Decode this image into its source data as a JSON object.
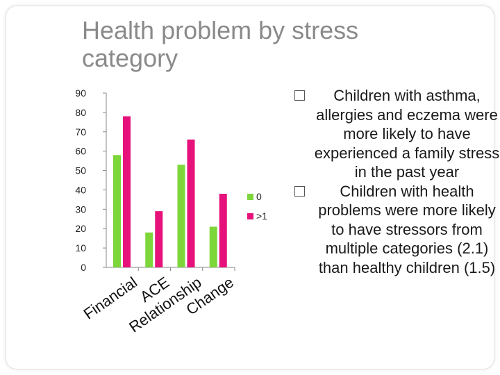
{
  "slide": {
    "title": "Health problem by stress category",
    "bullets": [
      "Children with asthma, allergies and eczema were more likely to have experienced a family stress in the past year",
      "Children with health problems were more likely to have stressors from multiple categories (2.1) than healthy children (1.5)"
    ]
  },
  "chart_data": {
    "type": "bar",
    "categories": [
      "Financial",
      "ACE",
      "Relationship",
      "Change"
    ],
    "series": [
      {
        "name": "0",
        "values": [
          58,
          18,
          53,
          21
        ],
        "color": "#7dd63a"
      },
      {
        "name": ">1",
        "values": [
          78,
          29,
          66,
          38
        ],
        "color": "#e6117a"
      }
    ],
    "yticks": [
      0,
      10,
      20,
      30,
      40,
      50,
      60,
      70,
      80,
      90
    ],
    "ylim": [
      0,
      90
    ],
    "grid": false,
    "legend_position": "right"
  }
}
